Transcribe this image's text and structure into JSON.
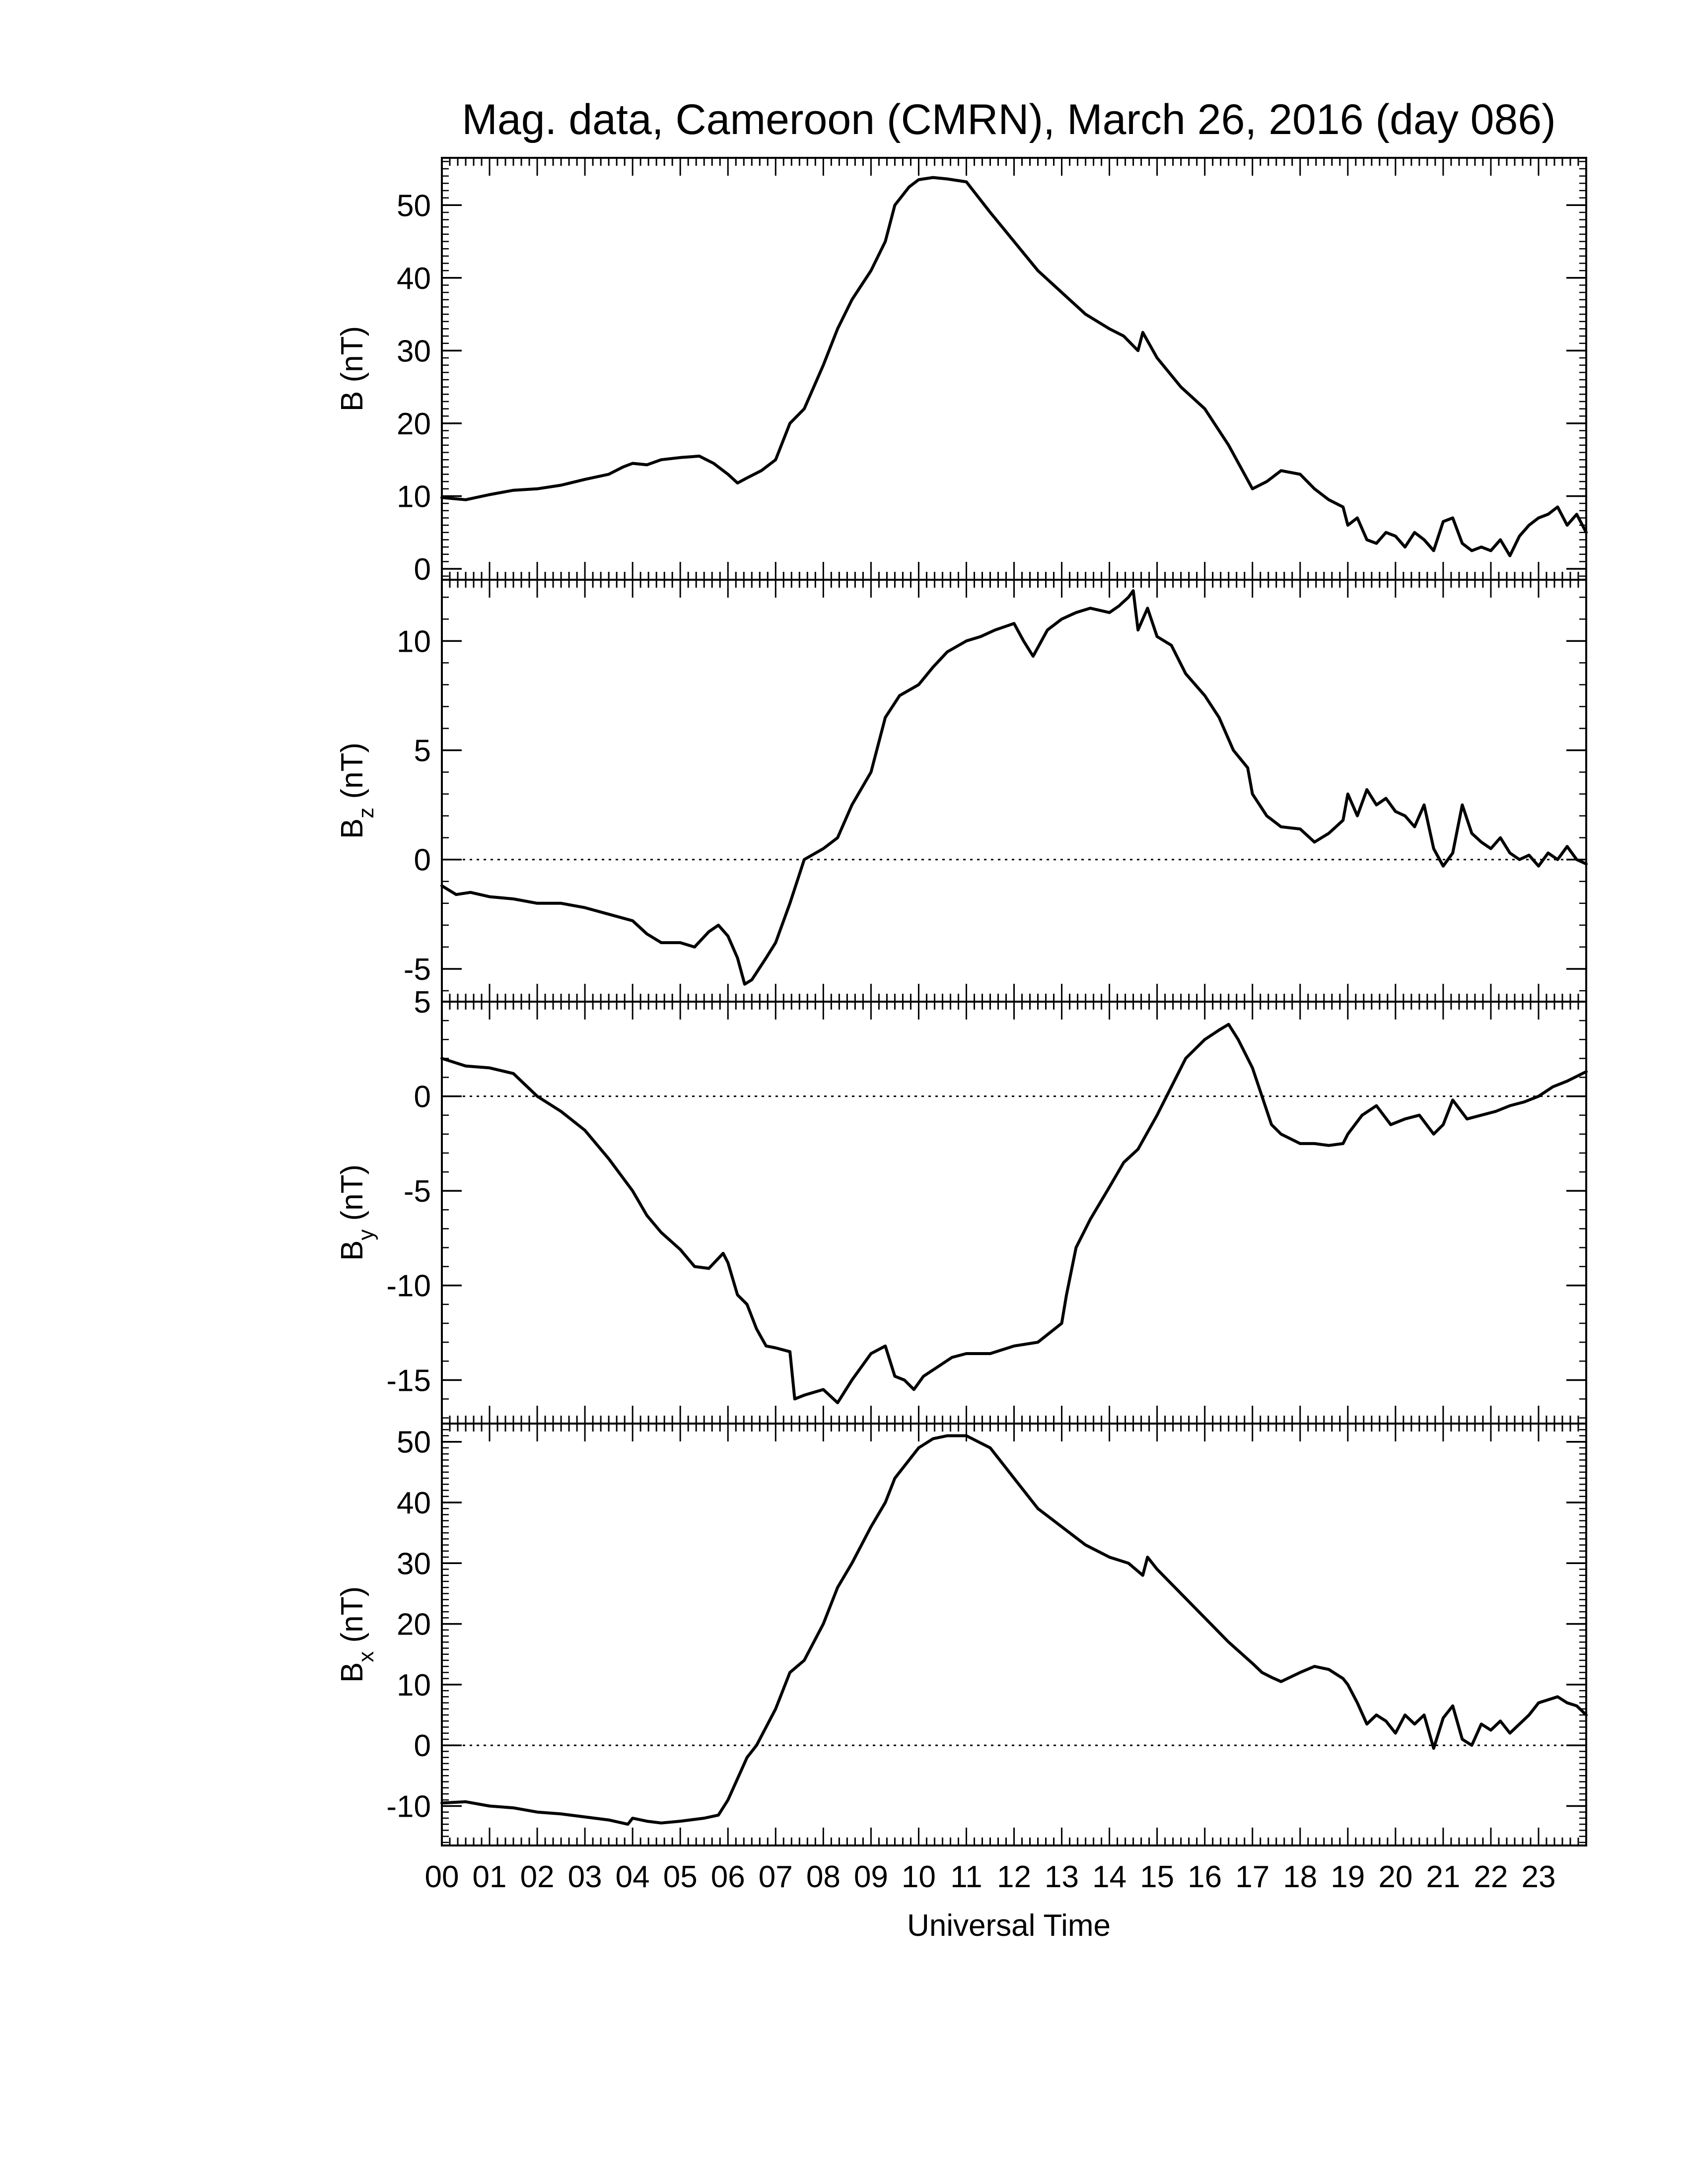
{
  "title": "Mag. data, Cameroon (CMRN), March 26, 2016 (day 086)",
  "xlabel": "Universal Time",
  "colors": {
    "trace": "#000000",
    "zero_line": "#000000",
    "background": "#ffffff"
  },
  "chart_data": [
    {
      "type": "line",
      "ylabel_main": "B",
      "ylabel_sub": "",
      "ylabel_unit": "(nT)",
      "xlim": [
        0,
        24
      ],
      "ylim": [
        -1.5,
        56.5
      ],
      "yticks": [
        0,
        10,
        20,
        30,
        40,
        50
      ],
      "ytick_labels": [
        "0",
        "10",
        "20",
        "30",
        "40",
        "50"
      ],
      "zero_line": false,
      "series": [
        {
          "x": [
            0,
            0.5,
            1,
            1.5,
            2,
            2.5,
            3,
            3.5,
            3.8,
            4,
            4.3,
            4.6,
            5,
            5.4,
            5.7,
            6,
            6.2,
            6.4,
            6.7,
            7,
            7.3,
            7.6,
            8,
            8.3,
            8.6,
            9,
            9.3,
            9.5,
            9.8,
            10,
            10.3,
            10.6,
            11,
            11.5,
            12,
            12.5,
            13,
            13.5,
            14,
            14.3,
            14.6,
            14.7,
            15,
            15.5,
            16,
            16.5,
            17,
            17.3,
            17.6,
            18,
            18.3,
            18.6,
            18.9,
            19,
            19.2,
            19.4,
            19.6,
            19.8,
            20,
            20.2,
            20.4,
            20.6,
            20.8,
            21,
            21.2,
            21.4,
            21.6,
            21.8,
            22,
            22.2,
            22.4,
            22.6,
            22.8,
            23,
            23.2,
            23.4,
            23.6,
            23.8,
            24
          ],
          "y": [
            9.8,
            9.5,
            10.2,
            10.8,
            11,
            11.5,
            12.3,
            13,
            14,
            14.5,
            14.3,
            15,
            15.3,
            15.5,
            14.5,
            13,
            11.8,
            12.5,
            13.5,
            15,
            20,
            22,
            28,
            33,
            37,
            41,
            45,
            50,
            52.5,
            53.5,
            53.8,
            53.6,
            53.2,
            49,
            45,
            41,
            38,
            35,
            33,
            32,
            30,
            32.5,
            29,
            25,
            22,
            17,
            11,
            12,
            13.5,
            13,
            11,
            9.5,
            8.5,
            6,
            7,
            4,
            3.5,
            5,
            4.5,
            3,
            5,
            4,
            2.5,
            6.5,
            7,
            3.5,
            2.5,
            3,
            2.5,
            4,
            1.8,
            4.5,
            6,
            7,
            7.5,
            8.5,
            6,
            7.5,
            5
          ]
        }
      ]
    },
    {
      "type": "line",
      "ylabel_main": "B",
      "ylabel_sub": "z",
      "ylabel_unit": "(nT)",
      "xlim": [
        0,
        24
      ],
      "ylim": [
        -6.5,
        12.8
      ],
      "yticks": [
        -5,
        0,
        5,
        10
      ],
      "ytick_labels": [
        "-5",
        "0",
        "5",
        "10"
      ],
      "zero_line": true,
      "series": [
        {
          "x": [
            0,
            0.3,
            0.6,
            1,
            1.5,
            2,
            2.5,
            3,
            3.5,
            4,
            4.3,
            4.6,
            5,
            5.3,
            5.6,
            5.8,
            6,
            6.2,
            6.35,
            6.5,
            6.8,
            7,
            7.3,
            7.6,
            8,
            8.3,
            8.6,
            9,
            9.3,
            9.6,
            10,
            10.3,
            10.6,
            11,
            11.3,
            11.6,
            12,
            12.2,
            12.4,
            12.7,
            13,
            13.3,
            13.6,
            14,
            14.2,
            14.4,
            14.5,
            14.6,
            14.8,
            15,
            15.3,
            15.6,
            16,
            16.3,
            16.6,
            16.9,
            17,
            17.3,
            17.6,
            18,
            18.3,
            18.6,
            18.9,
            19,
            19.2,
            19.4,
            19.6,
            19.8,
            20,
            20.2,
            20.4,
            20.6,
            20.8,
            21,
            21.2,
            21.4,
            21.6,
            21.8,
            22,
            22.2,
            22.4,
            22.6,
            22.8,
            23,
            23.2,
            23.4,
            23.6,
            23.8,
            24
          ],
          "y": [
            -1.2,
            -1.6,
            -1.5,
            -1.7,
            -1.8,
            -2,
            -2,
            -2.2,
            -2.5,
            -2.8,
            -3.4,
            -3.8,
            -3.8,
            -4,
            -3.3,
            -3,
            -3.5,
            -4.5,
            -5.7,
            -5.5,
            -4.5,
            -3.8,
            -2,
            0,
            0.5,
            1,
            2.5,
            4,
            6.5,
            7.5,
            8,
            8.8,
            9.5,
            10,
            10.2,
            10.5,
            10.8,
            10,
            9.3,
            10.5,
            11,
            11.3,
            11.5,
            11.3,
            11.6,
            12,
            12.3,
            10.5,
            11.5,
            10.2,
            9.8,
            8.5,
            7.5,
            6.5,
            5,
            4.2,
            3,
            2,
            1.5,
            1.4,
            0.8,
            1.2,
            1.8,
            3,
            2,
            3.2,
            2.5,
            2.8,
            2.2,
            2,
            1.5,
            2.5,
            0.5,
            -0.3,
            0.3,
            2.5,
            1.2,
            0.8,
            0.5,
            1,
            0.3,
            0,
            0.2,
            -0.3,
            0.3,
            0,
            0.6,
            0,
            -0.2
          ]
        }
      ]
    },
    {
      "type": "line",
      "ylabel_main": "B",
      "ylabel_sub": "y",
      "ylabel_unit": "(nT)",
      "xlim": [
        0,
        24
      ],
      "ylim": [
        -17.3,
        5
      ],
      "yticks": [
        -15,
        -10,
        -5,
        0,
        5
      ],
      "ytick_labels": [
        "-15",
        "-10",
        "-5",
        "0",
        "5"
      ],
      "zero_line": true,
      "series": [
        {
          "x": [
            0,
            0.5,
            1,
            1.5,
            2,
            2.5,
            3,
            3.5,
            4,
            4.3,
            4.6,
            5,
            5.3,
            5.6,
            5.9,
            6,
            6.2,
            6.4,
            6.6,
            6.8,
            7,
            7.3,
            7.4,
            7.6,
            8,
            8.3,
            8.6,
            9,
            9.3,
            9.5,
            9.7,
            9.9,
            10.1,
            10.4,
            10.7,
            11,
            11.5,
            12,
            12.5,
            13,
            13.1,
            13.3,
            13.6,
            14,
            14.3,
            14.6,
            15,
            15.3,
            15.6,
            16,
            16.3,
            16.5,
            16.7,
            17,
            17.2,
            17.4,
            17.6,
            18,
            18.3,
            18.6,
            18.9,
            19,
            19.3,
            19.6,
            19.9,
            20.2,
            20.5,
            20.8,
            21,
            21.2,
            21.5,
            21.8,
            22.1,
            22.4,
            22.7,
            23,
            23.3,
            23.6,
            24
          ],
          "y": [
            2,
            1.6,
            1.5,
            1.2,
            0,
            -0.8,
            -1.8,
            -3.3,
            -5,
            -6.3,
            -7.2,
            -8.1,
            -9,
            -9.1,
            -8.3,
            -8.8,
            -10.5,
            -11,
            -12.3,
            -13.2,
            -13.3,
            -13.5,
            -16,
            -15.8,
            -15.5,
            -16.2,
            -15,
            -13.6,
            -13.2,
            -14.8,
            -15,
            -15.5,
            -14.8,
            -14.3,
            -13.8,
            -13.6,
            -13.6,
            -13.2,
            -13,
            -12,
            -10.5,
            -8,
            -6.5,
            -4.8,
            -3.5,
            -2.8,
            -1,
            0.5,
            2,
            3,
            3.5,
            3.8,
            3,
            1.5,
            0,
            -1.5,
            -2,
            -2.5,
            -2.5,
            -2.6,
            -2.5,
            -2,
            -1,
            -0.5,
            -1.5,
            -1.2,
            -1,
            -2,
            -1.5,
            -0.2,
            -1.2,
            -1,
            -0.8,
            -0.5,
            -0.3,
            0,
            0.5,
            0.8,
            1.3
          ]
        }
      ]
    },
    {
      "type": "line",
      "ylabel_main": "B",
      "ylabel_sub": "x",
      "ylabel_unit": "(nT)",
      "xlim": [
        0,
        24
      ],
      "ylim": [
        -16.5,
        53
      ],
      "yticks": [
        -10,
        0,
        10,
        20,
        30,
        40,
        50
      ],
      "ytick_labels": [
        "-10",
        "0",
        "10",
        "20",
        "30",
        "40",
        "50"
      ],
      "zero_line": true,
      "series": [
        {
          "x": [
            0,
            0.5,
            1,
            1.5,
            2,
            2.5,
            3,
            3.5,
            3.9,
            4,
            4.3,
            4.6,
            5,
            5.5,
            5.8,
            6,
            6.2,
            6.4,
            6.6,
            6.8,
            7,
            7.3,
            7.6,
            8,
            8.3,
            8.6,
            9,
            9.3,
            9.5,
            9.8,
            10,
            10.3,
            10.6,
            11,
            11.5,
            12,
            12.5,
            13,
            13.5,
            14,
            14.4,
            14.7,
            14.8,
            15,
            15.5,
            16,
            16.5,
            17,
            17.2,
            17.4,
            17.6,
            18,
            18.3,
            18.6,
            18.9,
            19,
            19.2,
            19.4,
            19.6,
            19.8,
            20,
            20.2,
            20.4,
            20.6,
            20.8,
            21,
            21.2,
            21.4,
            21.6,
            21.8,
            22,
            22.2,
            22.4,
            22.6,
            22.8,
            23,
            23.2,
            23.4,
            23.6,
            23.8,
            24
          ],
          "y": [
            -9.5,
            -9.3,
            -10,
            -10.3,
            -11,
            -11.3,
            -11.8,
            -12.3,
            -13,
            -12,
            -12.5,
            -12.8,
            -12.5,
            -12,
            -11.5,
            -9,
            -5.5,
            -2,
            0,
            3,
            6,
            12,
            14,
            20,
            26,
            30,
            36,
            40,
            44,
            47,
            49,
            50.5,
            51,
            51,
            49,
            44,
            39,
            36,
            33,
            31,
            30,
            28,
            31,
            29,
            25,
            21,
            17,
            13.5,
            12,
            11.2,
            10.5,
            12,
            13,
            12.5,
            11,
            10,
            7,
            3.5,
            5,
            4,
            2,
            5,
            3.5,
            5,
            -0.5,
            4.5,
            6.5,
            1,
            0,
            3.5,
            2.5,
            4,
            2,
            3.5,
            5,
            7,
            7.5,
            8,
            7,
            6.5,
            5
          ]
        }
      ]
    }
  ],
  "x_axis": {
    "tick_labels": [
      "00",
      "01",
      "02",
      "03",
      "04",
      "05",
      "06",
      "07",
      "08",
      "09",
      "10",
      "11",
      "12",
      "13",
      "14",
      "15",
      "16",
      "17",
      "18",
      "19",
      "20",
      "21",
      "22",
      "23"
    ]
  }
}
